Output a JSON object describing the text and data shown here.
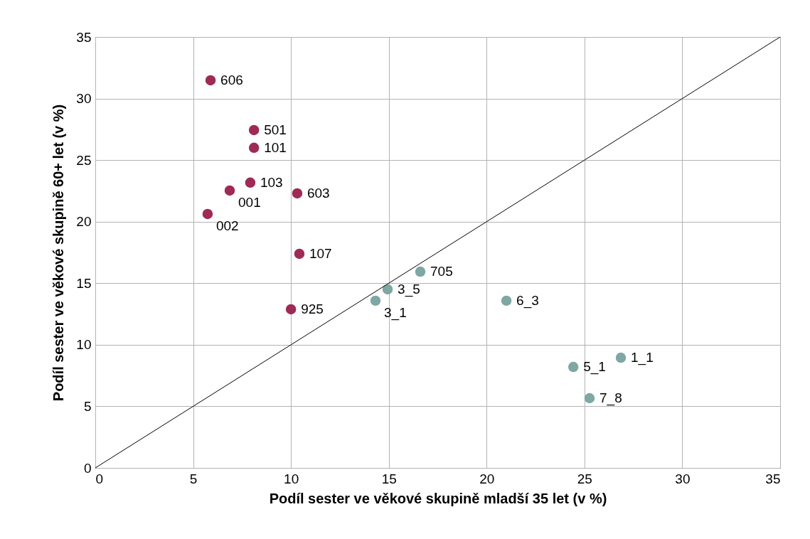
{
  "chart_data": {
    "type": "scatter",
    "xlabel": "Podíl sester ve věkové skupině mladší 35 let (v %)",
    "ylabel": "Podíl sester ve věkové skupině 60+ let (v %)",
    "xlim": [
      0,
      35
    ],
    "ylim": [
      0,
      35
    ],
    "xticks": [
      0,
      5,
      10,
      15,
      20,
      25,
      30,
      35
    ],
    "yticks": [
      0,
      5,
      10,
      15,
      20,
      25,
      30,
      35
    ],
    "grid": true,
    "marker": "circle",
    "series": [
      {
        "color": "#9e2a55",
        "x": [
          5.89,
          8.11,
          8.11,
          7.92,
          6.87,
          10.32,
          5.74,
          10.43,
          10.0
        ],
        "values": [
          31.48,
          27.44,
          26.0,
          23.17,
          22.53,
          22.3,
          20.62,
          17.39,
          12.88
        ]
      },
      {
        "color": "#7fa7a3",
        "x": [
          16.61,
          14.94,
          14.32,
          21.01,
          26.86,
          24.43,
          25.26
        ],
        "values": [
          15.94,
          14.5,
          13.58,
          13.58,
          8.95,
          8.2,
          5.66
        ]
      },
      {
        "type": "line",
        "color": "#000000",
        "x": [
          0,
          35
        ],
        "values": [
          0,
          35
        ],
        "marker": "none"
      }
    ],
    "annotations": [
      {
        "text": "606",
        "x": 5.89,
        "y": 31.48
      },
      {
        "text": "501",
        "x": 8.11,
        "y": 27.44
      },
      {
        "text": "101",
        "x": 8.11,
        "y": 26.0
      },
      {
        "text": "103",
        "x": 7.92,
        "y": 23.17
      },
      {
        "text": "001",
        "x": 6.87,
        "y": 22.53
      },
      {
        "text": "603",
        "x": 10.32,
        "y": 22.3
      },
      {
        "text": "002",
        "x": 5.74,
        "y": 20.62
      },
      {
        "text": "107",
        "x": 10.43,
        "y": 17.39
      },
      {
        "text": "925",
        "x": 10.0,
        "y": 12.88
      },
      {
        "text": "705",
        "x": 16.61,
        "y": 15.94
      },
      {
        "text": "3_5",
        "x": 14.94,
        "y": 14.5
      },
      {
        "text": "3_1",
        "x": 14.32,
        "y": 13.58
      },
      {
        "text": "6_3",
        "x": 21.01,
        "y": 13.58
      },
      {
        "text": "1_1",
        "x": 26.86,
        "y": 8.95
      },
      {
        "text": "5_1",
        "x": 24.43,
        "y": 8.2
      },
      {
        "text": "7_8",
        "x": 25.26,
        "y": 5.66
      }
    ]
  }
}
